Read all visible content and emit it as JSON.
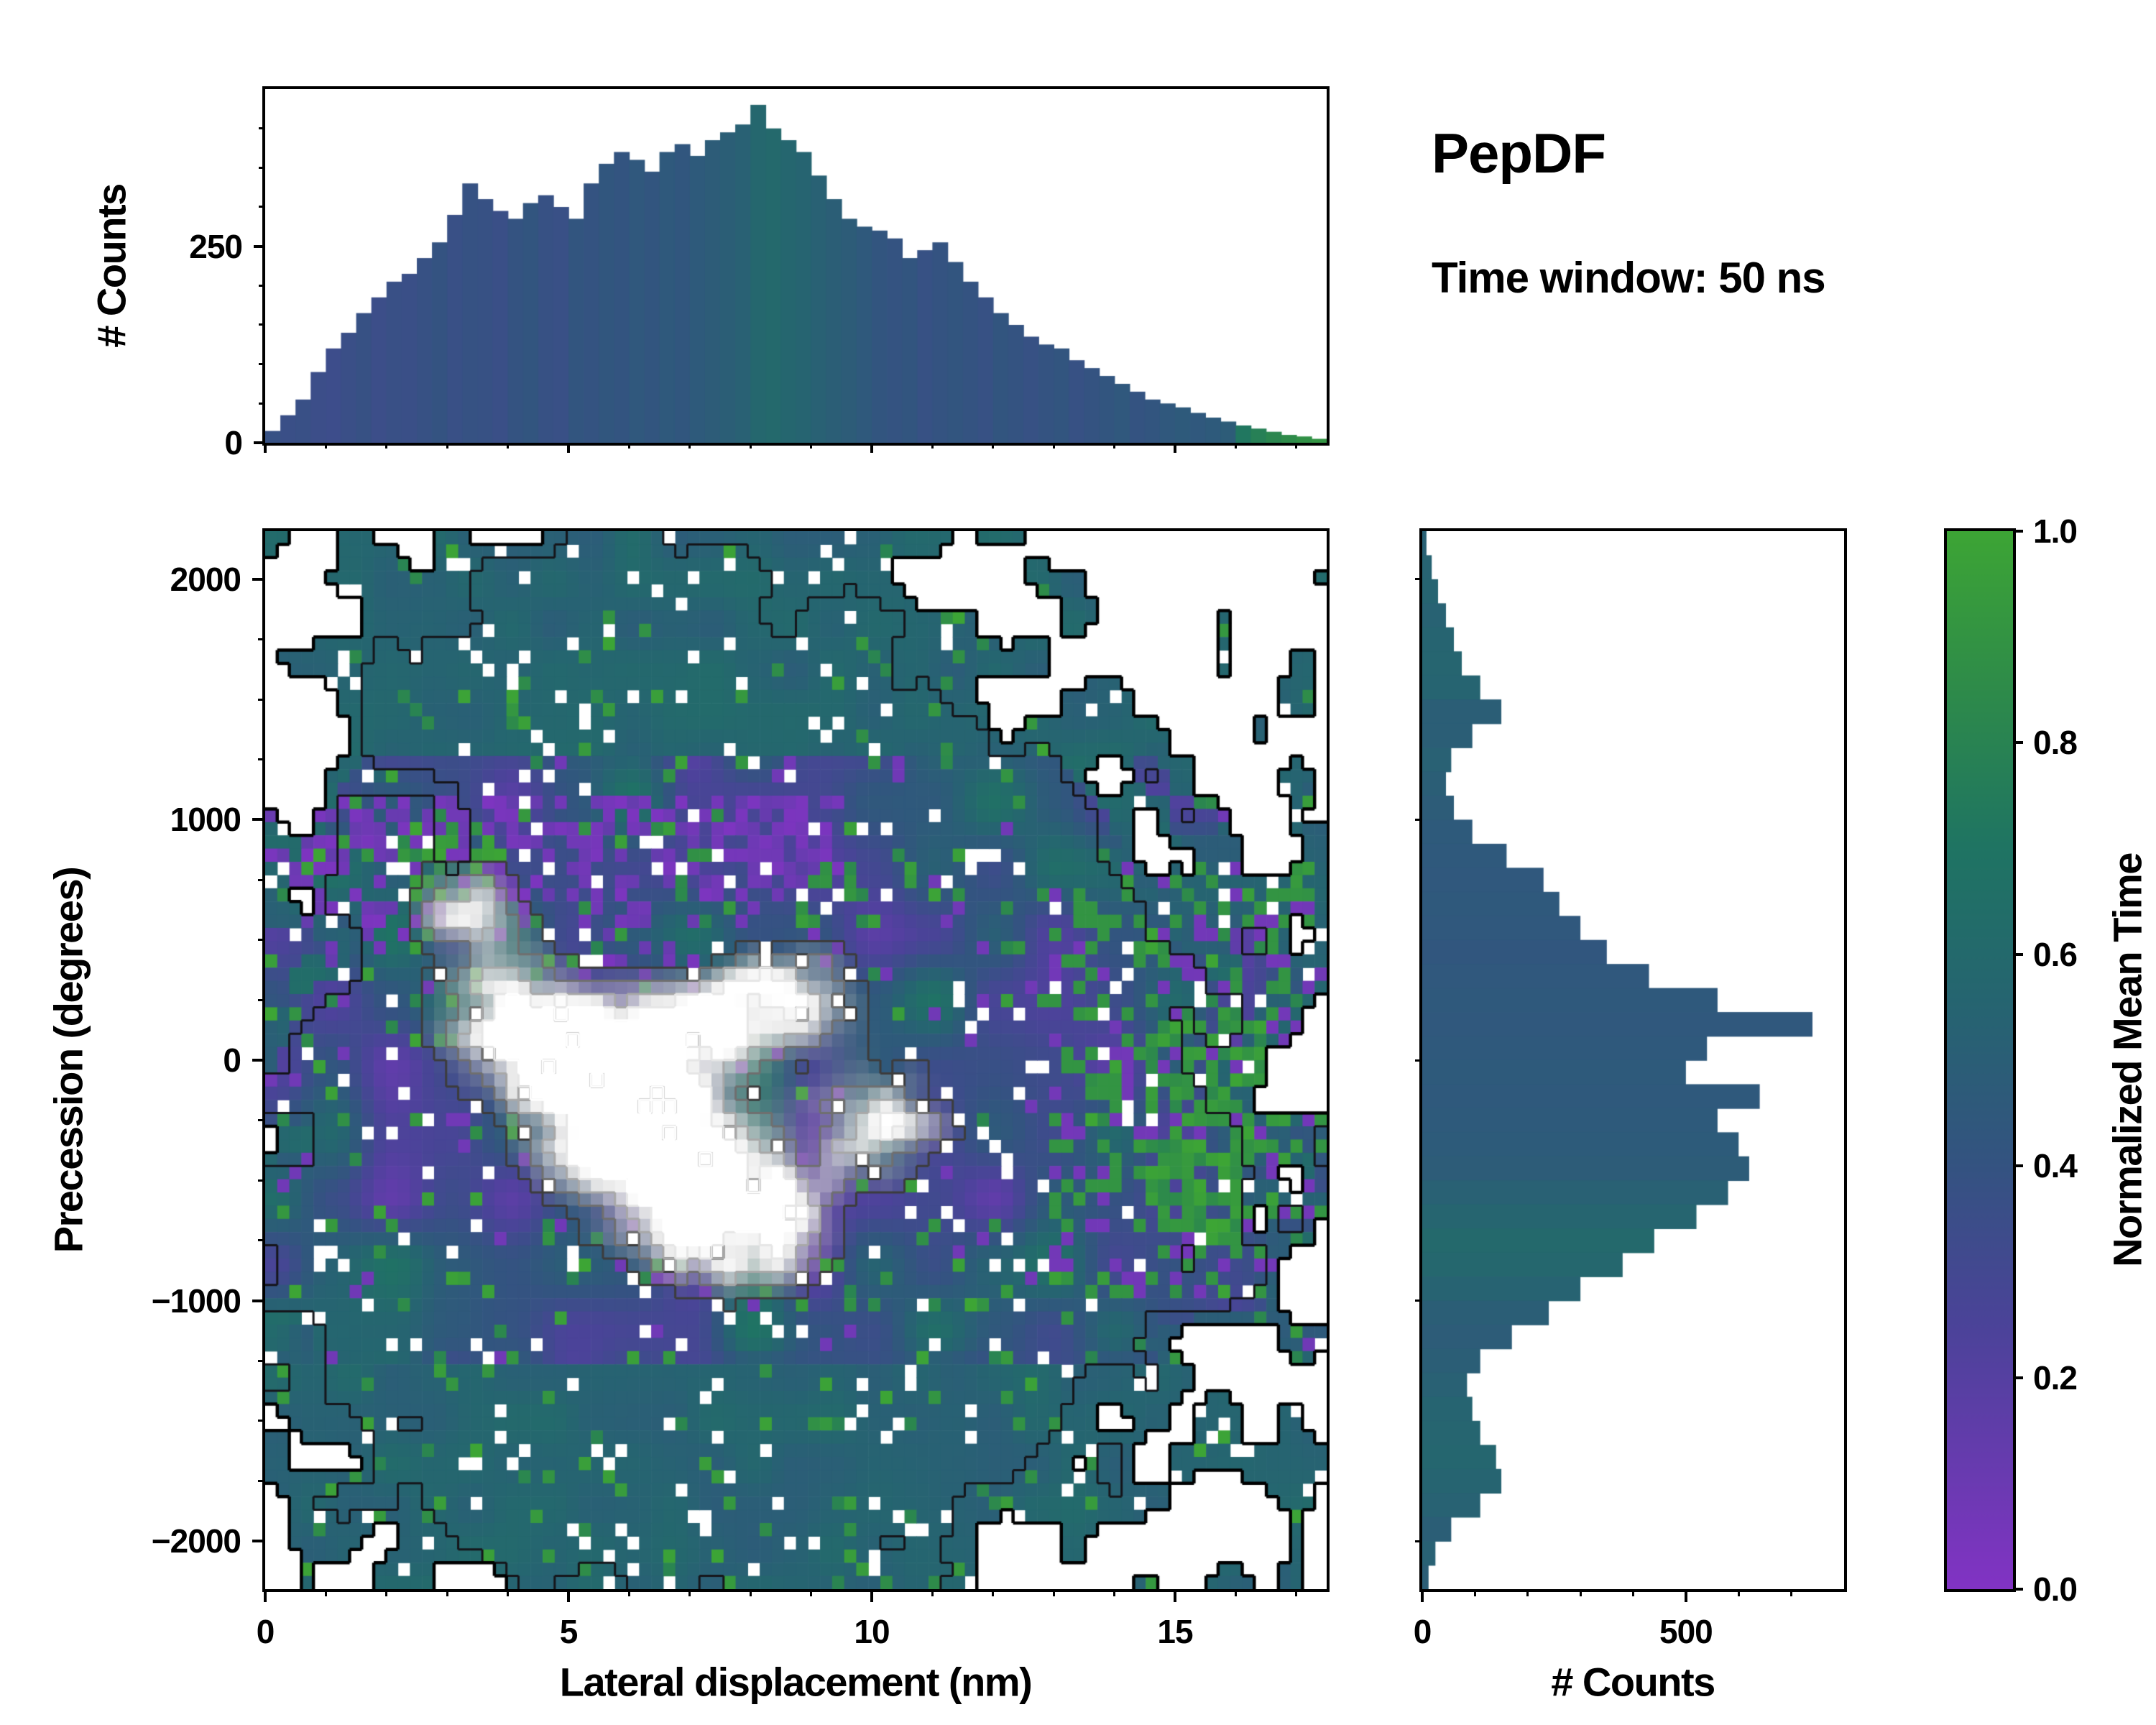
{
  "figure": {
    "title": "PepDF",
    "subtitle": "Time window: 50 ns",
    "background": "#ffffff"
  },
  "colormap": {
    "label": "Normalized Mean Time",
    "tick_values": [
      0,
      0.2,
      0.4,
      0.6,
      0.8,
      1.0
    ],
    "tick_labels": [
      "0.0",
      "0.2",
      "0.4",
      "0.6",
      "0.8",
      "1.0"
    ],
    "stops": [
      [
        0,
        "#8233c4"
      ],
      [
        0.1,
        "#6b3ab2"
      ],
      [
        0.25,
        "#4b4399"
      ],
      [
        0.4,
        "#345381"
      ],
      [
        0.55,
        "#266471"
      ],
      [
        0.7,
        "#1f7463"
      ],
      [
        0.85,
        "#2e8b4a"
      ],
      [
        1,
        "#3da535"
      ]
    ]
  },
  "chart_data": [
    {
      "type": "bar",
      "name": "top_marginal_histogram",
      "orientation": "vertical",
      "ylabel": "# Counts",
      "xlim": [
        0,
        17.5
      ],
      "ylim": [
        0,
        450
      ],
      "yticks": [
        0,
        250
      ],
      "xticks": [
        0,
        5,
        10,
        15
      ],
      "x_start": 0,
      "bin_width": 0.25,
      "values": [
        15,
        35,
        55,
        90,
        120,
        140,
        165,
        185,
        205,
        215,
        235,
        255,
        290,
        330,
        310,
        295,
        285,
        305,
        315,
        300,
        285,
        330,
        355,
        370,
        360,
        345,
        370,
        380,
        365,
        385,
        395,
        405,
        430,
        400,
        385,
        370,
        340,
        310,
        285,
        275,
        270,
        260,
        235,
        245,
        255,
        230,
        205,
        185,
        165,
        150,
        135,
        125,
        120,
        105,
        95,
        85,
        75,
        65,
        55,
        50,
        45,
        38,
        32,
        27,
        22,
        18,
        14,
        10,
        8,
        5
      ],
      "mean_time": [
        0.38,
        0.36,
        0.37,
        0.35,
        0.34,
        0.36,
        0.38,
        0.35,
        0.37,
        0.36,
        0.38,
        0.4,
        0.37,
        0.39,
        0.38,
        0.36,
        0.4,
        0.42,
        0.38,
        0.37,
        0.42,
        0.4,
        0.43,
        0.41,
        0.44,
        0.42,
        0.45,
        0.43,
        0.46,
        0.48,
        0.5,
        0.52,
        0.58,
        0.6,
        0.57,
        0.55,
        0.52,
        0.5,
        0.48,
        0.45,
        0.42,
        0.4,
        0.42,
        0.38,
        0.4,
        0.42,
        0.4,
        0.38,
        0.42,
        0.4,
        0.38,
        0.4,
        0.42,
        0.38,
        0.4,
        0.42,
        0.44,
        0.4,
        0.42,
        0.44,
        0.46,
        0.44,
        0.46,
        0.48,
        0.72,
        0.78,
        0.82,
        0.85,
        0.88,
        0.9
      ]
    },
    {
      "type": "heatmap",
      "name": "main_2d_histogram",
      "xlabel": "Lateral displacement (nm)",
      "ylabel": "Precession (degrees)",
      "xlim": [
        0,
        17.5
      ],
      "ylim": [
        -2200,
        2200
      ],
      "xticks": [
        0,
        5,
        10,
        15
      ],
      "yticks": [
        -2000,
        -1000,
        0,
        1000,
        2000
      ],
      "colorbar_label": "Normalized Mean Time",
      "value_range": [
        0,
        1
      ],
      "description": "2D histogram of precession angle vs lateral displacement, cells colored by normalized mean time (purple=0 to green=1). Dense diamond-shaped core near (7 nm, -100 deg) in dark blue/teal with grayscale highlight ridges and nested gray/white contours, purple patches along the upper boundary, scattered green cells, dark-teal ragged lobes extending to about +2200 and -2200 degrees, black stepped outer contour.",
      "generator": {
        "seed": 1337,
        "nx": 88,
        "ny": 80,
        "blobs": [
          [
            7.2,
            -150,
            4.6,
            950,
            1.0
          ],
          [
            6.0,
            1650,
            2.6,
            430,
            0.62
          ],
          [
            7.2,
            -1700,
            3.0,
            430,
            0.66
          ],
          [
            12.8,
            -350,
            2.6,
            650,
            0.55
          ],
          [
            10.5,
            900,
            1.6,
            380,
            0.4
          ],
          [
            3.0,
            -950,
            1.7,
            380,
            0.35
          ]
        ],
        "noise_amp": 0.22,
        "threshold": 0.16,
        "hole_chance": 0.055,
        "purple_band": [
          0,
          9.5,
          300,
          1100,
          0.55
        ],
        "purple_speckle": 0.03,
        "teal_band_abs_y": 1250,
        "right_mix": [
          13.0,
          -100,
          900,
          0.3
        ],
        "green_patches": [
          [
            3.2,
            850,
            1.0,
            180,
            0.5
          ],
          [
            15.6,
            -250,
            1.4,
            500,
            0.5
          ],
          [
            9.5,
            650,
            0.8,
            160,
            0.35
          ]
        ],
        "green_chance": 0.05,
        "highlights": [
          [
            6.3,
            -350,
            1.2,
            220,
            1.0
          ],
          [
            7.8,
            -680,
            1.05,
            200,
            0.92
          ],
          [
            4.2,
            160,
            0.95,
            180,
            0.8
          ],
          [
            5.5,
            -60,
            1.0,
            170,
            0.78
          ],
          [
            8.6,
            260,
            0.9,
            160,
            0.72
          ],
          [
            3.3,
            640,
            0.75,
            150,
            0.6
          ],
          [
            10.2,
            -260,
            0.85,
            170,
            0.62
          ],
          [
            6.9,
            120,
            0.8,
            150,
            0.66
          ]
        ],
        "contours": {
          "density": [
            [
              0.16,
              "#000000",
              4.5
            ],
            [
              0.34,
              "#15151a",
              3
            ]
          ],
          "highlight": [
            [
              0.22,
              "#3c3c3c",
              3
            ],
            [
              0.38,
              "#6f6f6f",
              3
            ],
            [
              0.55,
              "#a8a8a8",
              3
            ],
            [
              0.72,
              "#e6e6e6",
              3
            ],
            [
              0.86,
              "#ffffff",
              3
            ]
          ]
        }
      }
    },
    {
      "type": "bar",
      "name": "right_marginal_histogram",
      "orientation": "horizontal",
      "xlabel": "# Counts",
      "xlim": [
        0,
        800
      ],
      "xticks": [
        0,
        500
      ],
      "ylim": [
        -2200,
        2200
      ],
      "y_start": 2200,
      "bin_height": 100,
      "values": [
        8,
        18,
        30,
        45,
        60,
        75,
        110,
        150,
        95,
        55,
        45,
        60,
        95,
        160,
        230,
        260,
        300,
        350,
        430,
        560,
        740,
        540,
        500,
        640,
        560,
        600,
        620,
        580,
        520,
        440,
        380,
        300,
        240,
        170,
        110,
        85,
        95,
        110,
        140,
        150,
        110,
        55,
        25,
        12
      ],
      "mean_time": [
        0.52,
        0.54,
        0.55,
        0.53,
        0.55,
        0.56,
        0.55,
        0.5,
        0.5,
        0.52,
        0.5,
        0.48,
        0.46,
        0.45,
        0.44,
        0.45,
        0.44,
        0.43,
        0.44,
        0.45,
        0.44,
        0.45,
        0.46,
        0.45,
        0.46,
        0.47,
        0.48,
        0.52,
        0.56,
        0.6,
        0.58,
        0.54,
        0.5,
        0.48,
        0.5,
        0.52,
        0.55,
        0.56,
        0.57,
        0.55,
        0.53,
        0.5,
        0.52,
        0.5
      ]
    }
  ]
}
